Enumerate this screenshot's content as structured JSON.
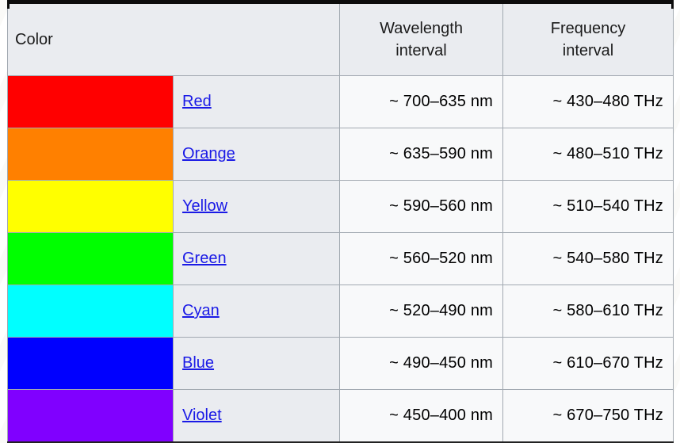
{
  "table": {
    "header": {
      "color_label": "Color",
      "wavelength_label": "Wavelength\ninterval",
      "frequency_label": "Frequency\ninterval"
    },
    "rows": [
      {
        "name": "Red",
        "swatch": "#ff0000",
        "wavelength": "~ 700–635 nm",
        "frequency": "~ 430–480 THz"
      },
      {
        "name": "Orange",
        "swatch": "#ff8000",
        "wavelength": "~ 635–590 nm",
        "frequency": "~ 480–510 THz"
      },
      {
        "name": "Yellow",
        "swatch": "#ffff00",
        "wavelength": "~ 590–560 nm",
        "frequency": "~ 510–540 THz"
      },
      {
        "name": "Green",
        "swatch": "#00ff00",
        "wavelength": "~ 560–520 nm",
        "frequency": "~ 540–580 THz"
      },
      {
        "name": "Cyan",
        "swatch": "#00ffff",
        "wavelength": "~ 520–490 nm",
        "frequency": "~ 580–610 THz"
      },
      {
        "name": "Blue",
        "swatch": "#0000ff",
        "wavelength": "~ 490–450 nm",
        "frequency": "~ 610–670 THz"
      },
      {
        "name": "Violet",
        "swatch": "#8000ff",
        "wavelength": "~ 450–400 nm",
        "frequency": "~ 670–750 THz"
      }
    ],
    "colors": {
      "header_bg": "#eaecf0",
      "name_cell_bg": "#eaecf0",
      "value_cell_bg": "#f8f9fa",
      "cell_border": "#a2a9b1",
      "outer_border": "#0c0c0c",
      "link": "#1a1ae6"
    }
  },
  "chart_data": {
    "type": "table",
    "title": "Visible spectrum: color, wavelength interval, frequency interval",
    "columns": [
      "Color",
      "Wavelength interval",
      "Frequency interval"
    ],
    "rows": [
      [
        "Red",
        "~ 700–635 nm",
        "~ 430–480 THz"
      ],
      [
        "Orange",
        "~ 635–590 nm",
        "~ 480–510 THz"
      ],
      [
        "Yellow",
        "~ 590–560 nm",
        "~ 510–540 THz"
      ],
      [
        "Green",
        "~ 560–520 nm",
        "~ 540–580 THz"
      ],
      [
        "Cyan",
        "~ 520–490 nm",
        "~ 580–610 THz"
      ],
      [
        "Blue",
        "~ 490–450 nm",
        "~ 610–670 THz"
      ],
      [
        "Violet",
        "~ 450–400 nm",
        "~ 670–750 THz"
      ]
    ],
    "row_swatch_colors": [
      "#ff0000",
      "#ff8000",
      "#ffff00",
      "#00ff00",
      "#00ffff",
      "#0000ff",
      "#8000ff"
    ]
  }
}
